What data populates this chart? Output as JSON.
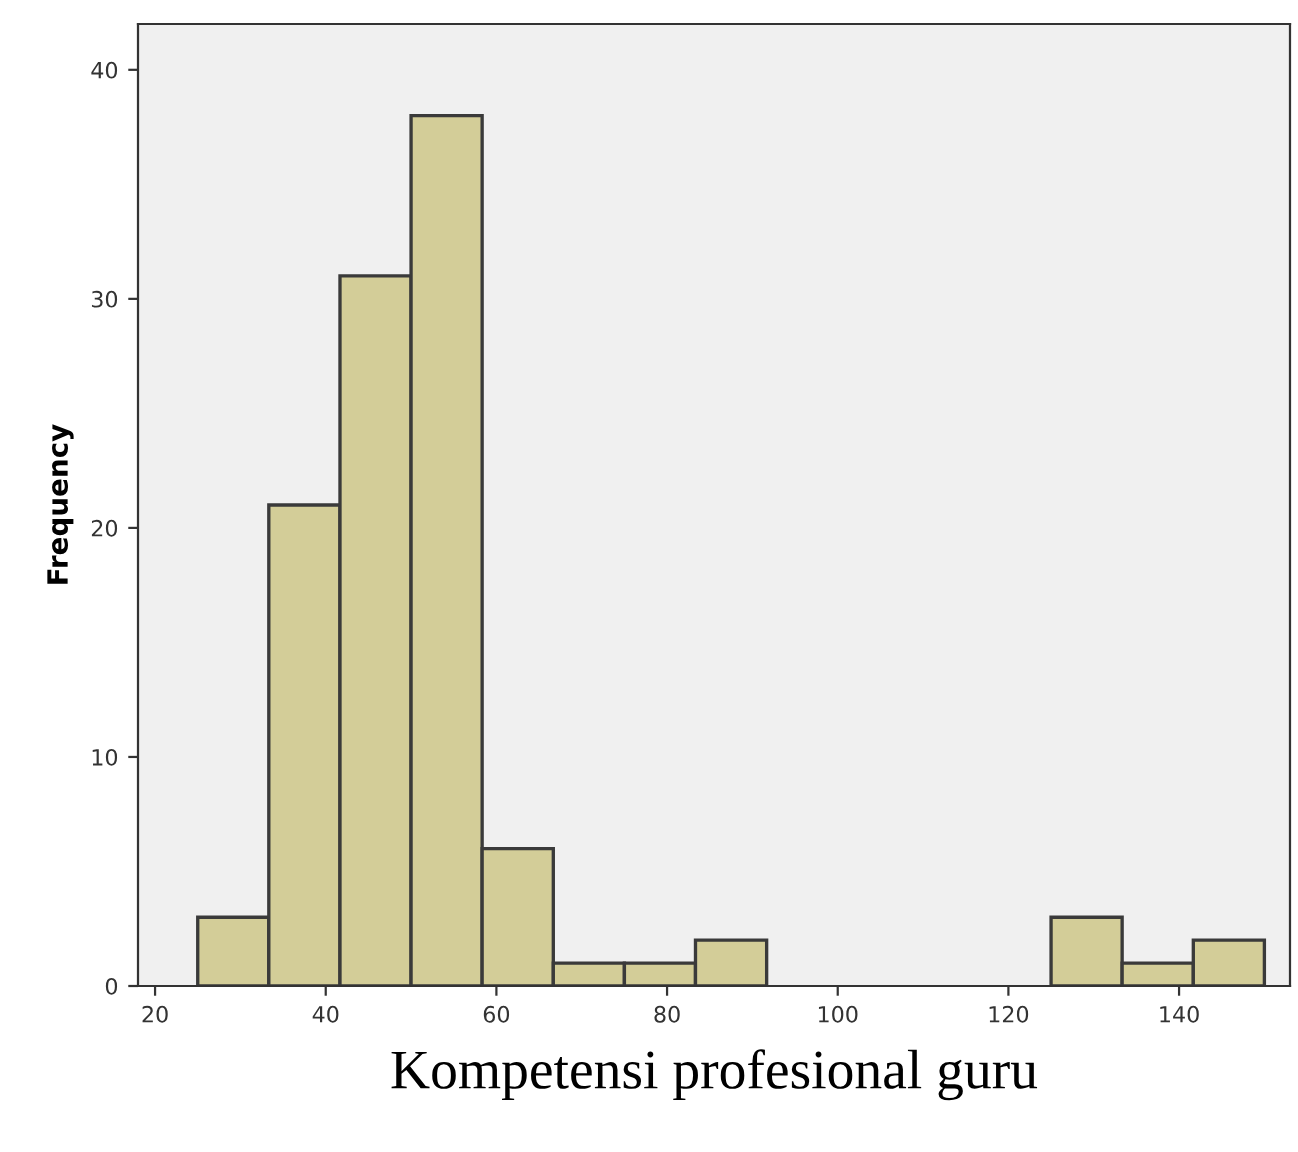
{
  "chart_data": {
    "type": "histogram",
    "xlabel": "Kompetensi profesional guru",
    "ylabel": "Frequency",
    "bins": [
      25,
      33.33,
      41.67,
      50,
      58.33,
      66.67,
      75,
      83.33,
      91.67,
      100,
      108.33,
      116.67,
      125,
      133.33,
      141.67,
      150
    ],
    "values": [
      3,
      21,
      31,
      38,
      6,
      1,
      1,
      2,
      0,
      0,
      0,
      0,
      3,
      1,
      2
    ],
    "color": "#d3cd98",
    "xlim": [
      18,
      153
    ],
    "ylim": [
      0,
      42
    ],
    "xticks": [
      20,
      40,
      60,
      80,
      100,
      120,
      140
    ],
    "yticks": [
      0,
      10,
      20,
      30,
      40
    ],
    "grid": false
  }
}
